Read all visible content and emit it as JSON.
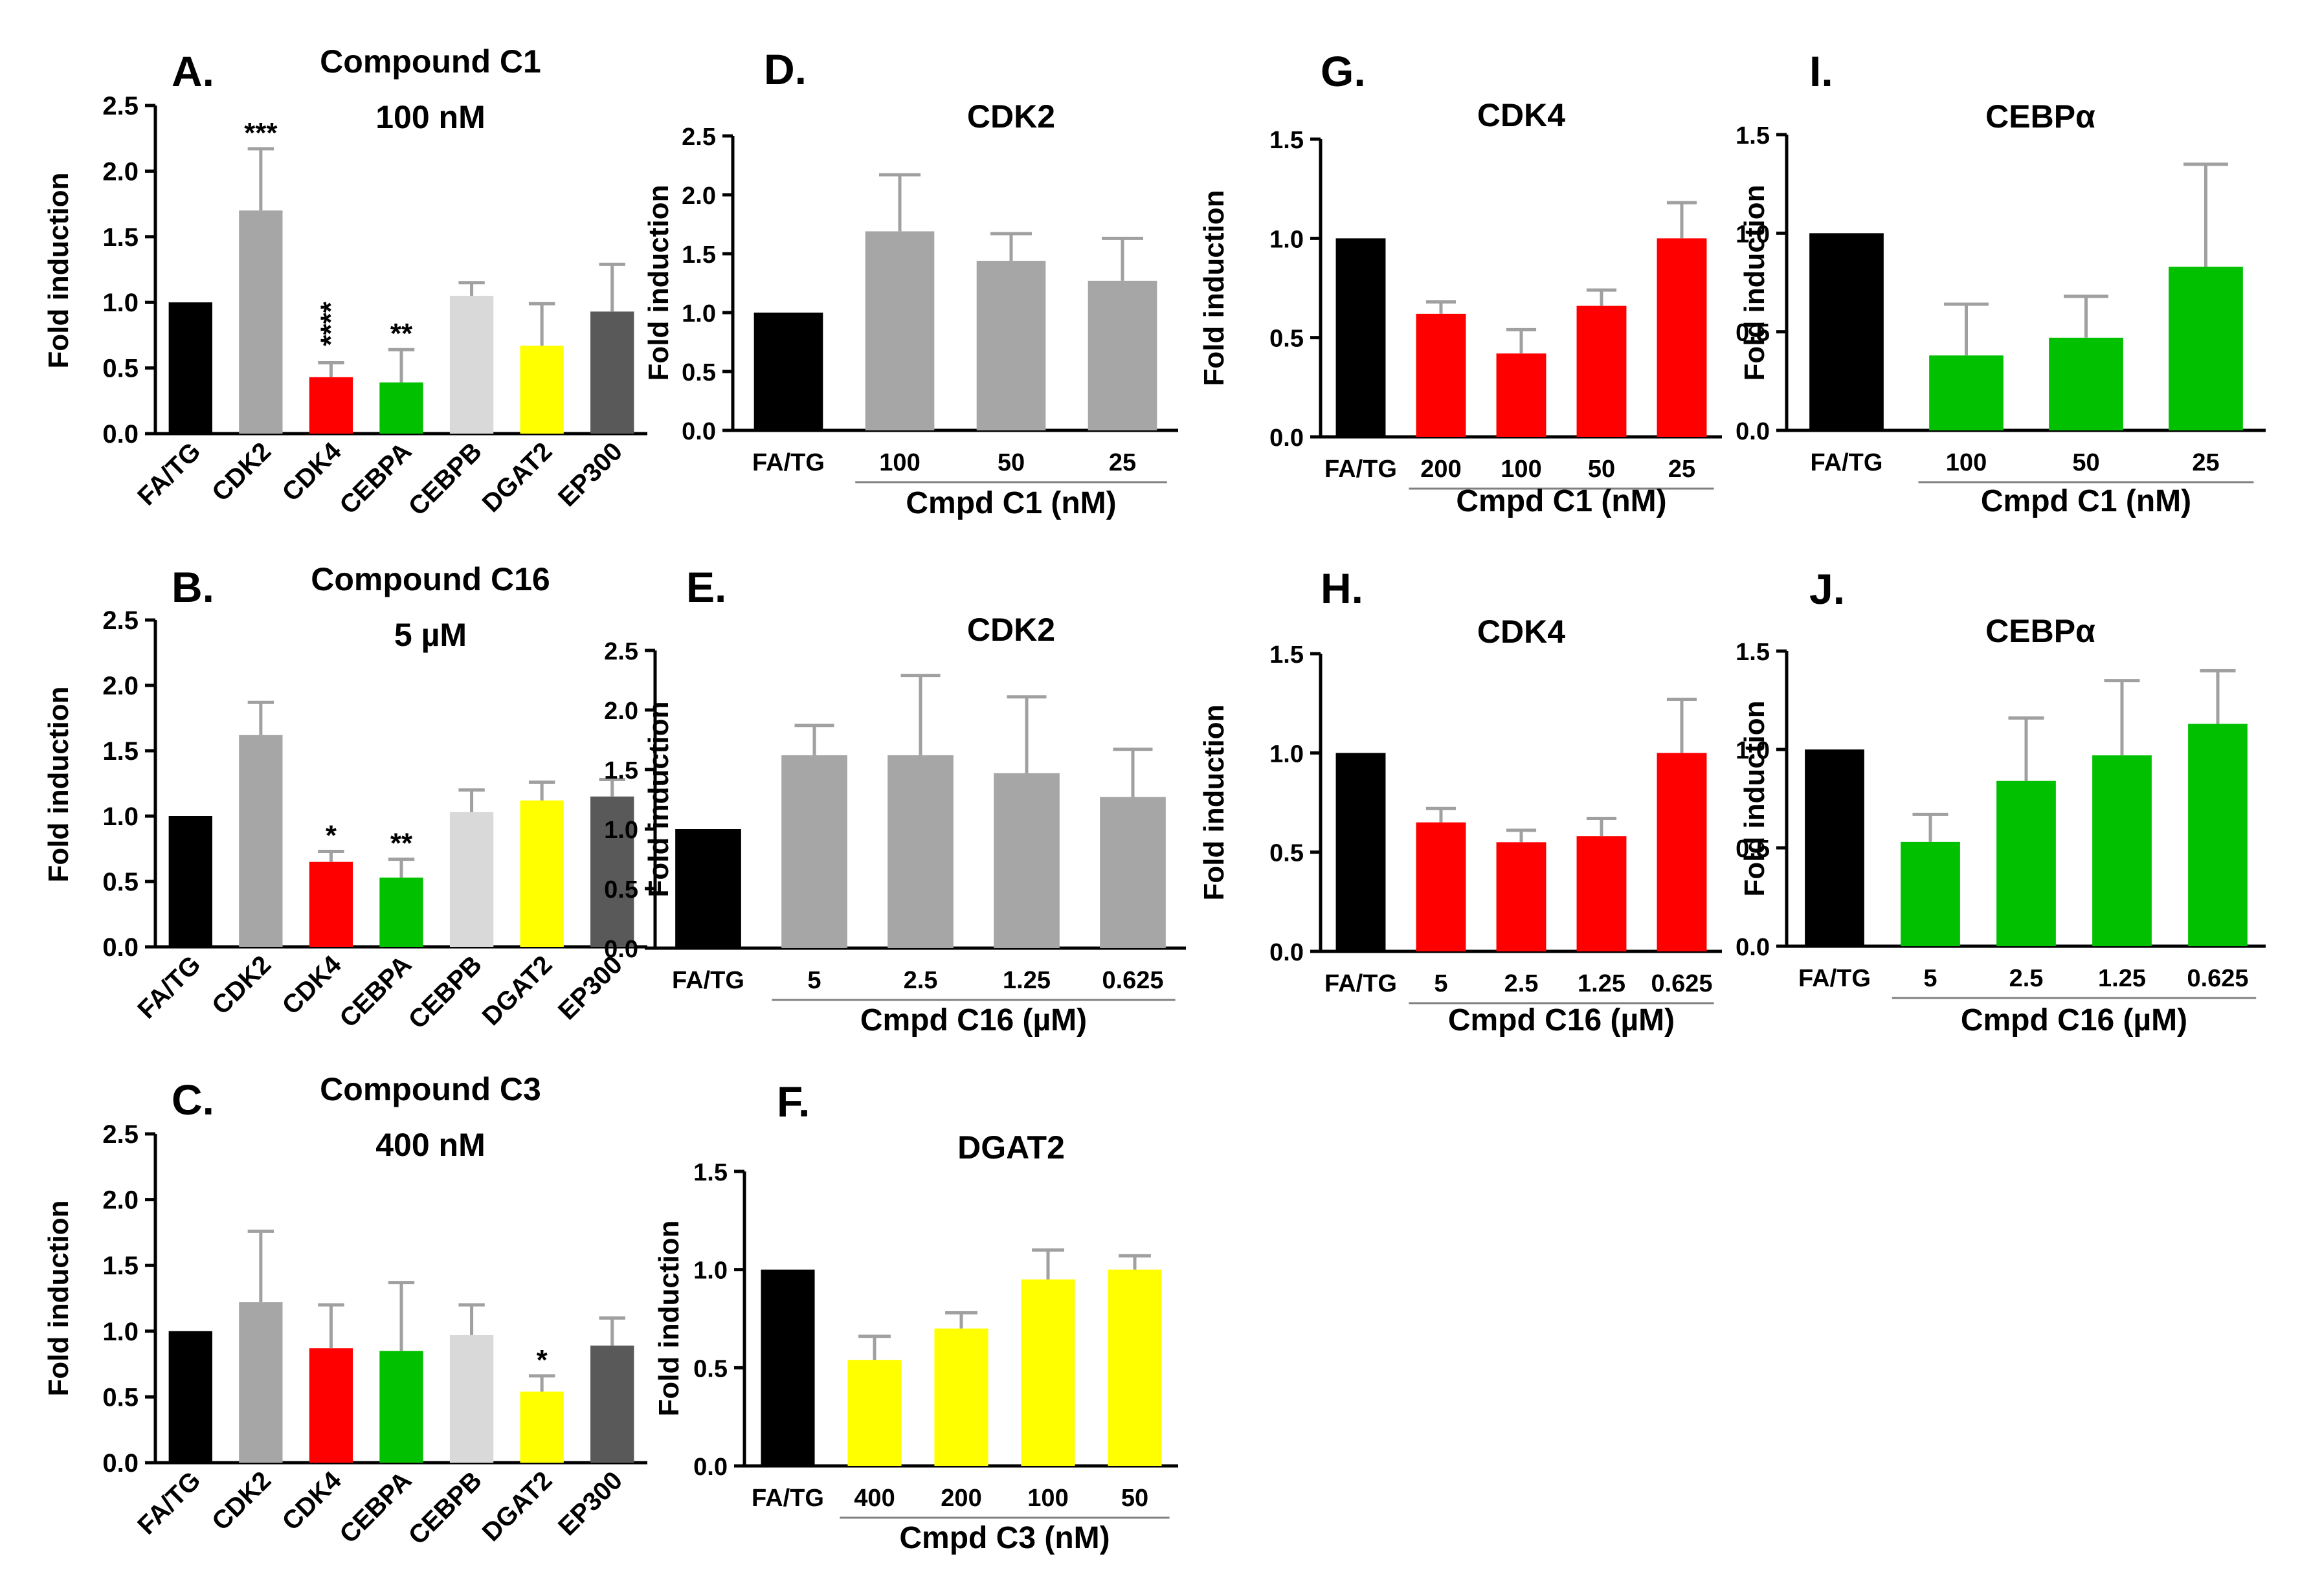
{
  "figure": {
    "background": "#ffffff"
  },
  "chart_data": [
    {
      "id": "A",
      "type": "bar",
      "panel_label": "A.",
      "title_lines": [
        "Compound C1",
        "100 nM"
      ],
      "ylabel": "Fold induction",
      "xlabel": "",
      "ylim": [
        0,
        2.5
      ],
      "yticks": [
        "0.0",
        "0.5",
        "1.0",
        "1.5",
        "2.0",
        "2.5"
      ],
      "categories": [
        "FA/TG",
        "CDK2",
        "CDK4",
        "CEBPA",
        "CEBPB",
        "DGAT2",
        "EP300"
      ],
      "values": [
        1.0,
        1.7,
        0.43,
        0.39,
        1.05,
        0.67,
        0.93
      ],
      "errors": [
        0,
        0.47,
        0.11,
        0.25,
        0.1,
        0.32,
        0.36
      ],
      "colors": [
        "#000000",
        "#a6a6a6",
        "#ff0000",
        "#00c000",
        "#d9d9d9",
        "#ffff00",
        "#595959"
      ],
      "significance": [
        "",
        "***",
        "****",
        "**",
        "",
        "",
        ""
      ]
    },
    {
      "id": "B",
      "type": "bar",
      "panel_label": "B.",
      "title_lines": [
        "Compound C16",
        "5 µM"
      ],
      "ylabel": "Fold induction",
      "xlabel": "",
      "ylim": [
        0,
        2.5
      ],
      "yticks": [
        "0.0",
        "0.5",
        "1.0",
        "1.5",
        "2.0",
        "2.5"
      ],
      "categories": [
        "FA/TG",
        "CDK2",
        "CDK4",
        "CEBPA",
        "CEBPB",
        "DGAT2",
        "EP300"
      ],
      "values": [
        1.0,
        1.62,
        0.65,
        0.53,
        1.03,
        1.12,
        1.15
      ],
      "errors": [
        0,
        0.25,
        0.08,
        0.14,
        0.17,
        0.14,
        0.13
      ],
      "colors": [
        "#000000",
        "#a6a6a6",
        "#ff0000",
        "#00c000",
        "#d9d9d9",
        "#ffff00",
        "#595959"
      ],
      "significance": [
        "",
        "",
        "*",
        "**",
        "",
        "",
        ""
      ]
    },
    {
      "id": "C",
      "type": "bar",
      "panel_label": "C.",
      "title_lines": [
        "Compound C3",
        "400 nM"
      ],
      "ylabel": "Fold induction",
      "xlabel": "",
      "ylim": [
        0,
        2.5
      ],
      "yticks": [
        "0.0",
        "0.5",
        "1.0",
        "1.5",
        "2.0",
        "2.5"
      ],
      "categories": [
        "FA/TG",
        "CDK2",
        "CDK4",
        "CEBPA",
        "CEBPB",
        "DGAT2",
        "EP300"
      ],
      "values": [
        1.0,
        1.22,
        0.87,
        0.85,
        0.97,
        0.54,
        0.89
      ],
      "errors": [
        0,
        0.54,
        0.33,
        0.52,
        0.23,
        0.12,
        0.21
      ],
      "colors": [
        "#000000",
        "#a6a6a6",
        "#ff0000",
        "#00c000",
        "#d9d9d9",
        "#ffff00",
        "#595959"
      ],
      "significance": [
        "",
        "",
        "",
        "",
        "",
        "*",
        ""
      ]
    },
    {
      "id": "D",
      "type": "bar",
      "panel_label": "D.",
      "title_lines": [
        "CDK2"
      ],
      "ylabel": "Fold induction",
      "xlabel": "Cmpd C1 (nM)",
      "ylim": [
        0,
        2.5
      ],
      "yticks": [
        "0.0",
        "0.5",
        "1.0",
        "1.5",
        "2.0",
        "2.5"
      ],
      "categories": [
        "FA/TG",
        "100",
        "50",
        "25"
      ],
      "values": [
        1.0,
        1.69,
        1.44,
        1.27
      ],
      "errors": [
        0,
        0.48,
        0.23,
        0.36
      ],
      "colors": [
        "#000000",
        "#a6a6a6",
        "#a6a6a6",
        "#a6a6a6"
      ],
      "significance": [
        "",
        "",
        "",
        ""
      ]
    },
    {
      "id": "E",
      "type": "bar",
      "panel_label": "E.",
      "title_lines": [
        "CDK2"
      ],
      "ylabel": "Fold induction",
      "xlabel": "Cmpd C16 (µM)",
      "ylim": [
        0,
        2.5
      ],
      "yticks": [
        "0.0",
        "0.5",
        "1.0",
        "1.5",
        "2.0",
        "2.5"
      ],
      "categories": [
        "FA/TG",
        "5",
        "2.5",
        "1.25",
        "0.625"
      ],
      "values": [
        1.0,
        1.62,
        1.62,
        1.47,
        1.27
      ],
      "errors": [
        0,
        0.25,
        0.67,
        0.64,
        0.4
      ],
      "colors": [
        "#000000",
        "#a6a6a6",
        "#a6a6a6",
        "#a6a6a6",
        "#a6a6a6"
      ],
      "significance": [
        "",
        "",
        "",
        "",
        ""
      ]
    },
    {
      "id": "F",
      "type": "bar",
      "panel_label": "F.",
      "title_lines": [
        "DGAT2"
      ],
      "ylabel": "Fold induction",
      "xlabel": "Cmpd C3 (nM)",
      "ylim": [
        0,
        1.5
      ],
      "yticks": [
        "0.0",
        "0.5",
        "1.0",
        "1.5"
      ],
      "categories": [
        "FA/TG",
        "400",
        "200",
        "100",
        "50"
      ],
      "values": [
        1.0,
        0.54,
        0.7,
        0.95,
        1.0
      ],
      "errors": [
        0,
        0.12,
        0.08,
        0.15,
        0.07
      ],
      "colors": [
        "#000000",
        "#ffff00",
        "#ffff00",
        "#ffff00",
        "#ffff00"
      ],
      "significance": [
        "",
        "",
        "",
        "",
        ""
      ]
    },
    {
      "id": "G",
      "type": "bar",
      "panel_label": "G.",
      "title_lines": [
        "CDK4"
      ],
      "ylabel": "Fold induction",
      "xlabel": "Cmpd C1 (nM)",
      "ylim": [
        0,
        1.5
      ],
      "yticks": [
        "0.0",
        "0.5",
        "1.0",
        "1.5"
      ],
      "categories": [
        "FA/TG",
        "200",
        "100",
        "50",
        "25"
      ],
      "values": [
        1.0,
        0.62,
        0.42,
        0.66,
        1.0
      ],
      "errors": [
        0,
        0.06,
        0.12,
        0.08,
        0.18
      ],
      "colors": [
        "#000000",
        "#ff0000",
        "#ff0000",
        "#ff0000",
        "#ff0000"
      ],
      "significance": [
        "",
        "",
        "",
        "",
        ""
      ]
    },
    {
      "id": "H",
      "type": "bar",
      "panel_label": "H.",
      "title_lines": [
        "CDK4"
      ],
      "ylabel": "Fold induction",
      "xlabel": "Cmpd C16 (µM)",
      "ylim": [
        0,
        1.5
      ],
      "yticks": [
        "0.0",
        "0.5",
        "1.0",
        "1.5"
      ],
      "categories": [
        "FA/TG",
        "5",
        "2.5",
        "1.25",
        "0.625"
      ],
      "values": [
        1.0,
        0.65,
        0.55,
        0.58,
        1.0
      ],
      "errors": [
        0,
        0.07,
        0.06,
        0.09,
        0.27
      ],
      "colors": [
        "#000000",
        "#ff0000",
        "#ff0000",
        "#ff0000",
        "#ff0000"
      ],
      "significance": [
        "",
        "",
        "",
        "",
        ""
      ]
    },
    {
      "id": "I",
      "type": "bar",
      "panel_label": "I.",
      "title_lines": [
        "CEBPα"
      ],
      "ylabel": "Fold induction",
      "xlabel": "Cmpd C1 (nM)",
      "ylim": [
        0,
        1.5
      ],
      "yticks": [
        "0.0",
        "0.5",
        "1.0",
        "1.5"
      ],
      "categories": [
        "FA/TG",
        "100",
        "50",
        "25"
      ],
      "values": [
        1.0,
        0.38,
        0.47,
        0.83
      ],
      "errors": [
        0,
        0.26,
        0.21,
        0.52
      ],
      "colors": [
        "#000000",
        "#00c000",
        "#00c000",
        "#00c000"
      ],
      "significance": [
        "",
        "",
        "",
        ""
      ]
    },
    {
      "id": "J",
      "type": "bar",
      "panel_label": "J.",
      "title_lines": [
        "CEBPα"
      ],
      "ylabel": "Fold induction",
      "xlabel": "Cmpd C16 (µM)",
      "ylim": [
        0,
        1.5
      ],
      "yticks": [
        "0.0",
        "0.5",
        "1.0",
        "1.5"
      ],
      "categories": [
        "FA/TG",
        "5",
        "2.5",
        "1.25",
        "0.625"
      ],
      "values": [
        1.0,
        0.53,
        0.84,
        0.97,
        1.13
      ],
      "errors": [
        0,
        0.14,
        0.32,
        0.38,
        0.27
      ],
      "colors": [
        "#000000",
        "#00c000",
        "#00c000",
        "#00c000",
        "#00c000"
      ],
      "significance": [
        "",
        "",
        "",
        "",
        ""
      ]
    }
  ]
}
